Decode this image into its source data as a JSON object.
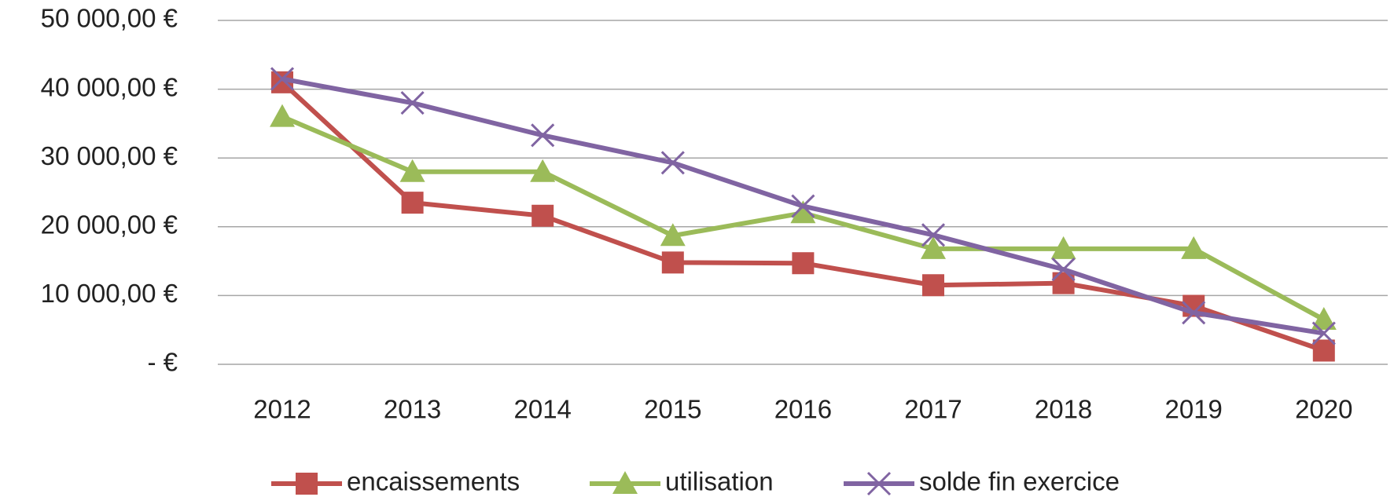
{
  "chart_data": {
    "type": "line",
    "categories": [
      "2012",
      "2013",
      "2014",
      "2015",
      "2016",
      "2017",
      "2018",
      "2019",
      "2020"
    ],
    "series": [
      {
        "name": "encaissements",
        "color": "#c0504d",
        "marker": "square",
        "values": [
          41000,
          23500,
          21600,
          14800,
          14700,
          11500,
          11800,
          8500,
          2000
        ]
      },
      {
        "name": "utilisation",
        "color": "#9bbb59",
        "marker": "triangle",
        "values": [
          36000,
          28000,
          28000,
          18700,
          22000,
          16800,
          16800,
          16800,
          6500
        ]
      },
      {
        "name": "solde fin exercice",
        "color": "#8064a2",
        "marker": "x",
        "values": [
          41500,
          38000,
          33300,
          29300,
          23000,
          18800,
          13800,
          7500,
          4500
        ]
      }
    ],
    "ylim": [
      0,
      50000
    ],
    "yticks": [
      {
        "value": 0,
        "label": "-   €"
      },
      {
        "value": 10000,
        "label": "10 000,00 €"
      },
      {
        "value": 20000,
        "label": "20 000,00 €"
      },
      {
        "value": 30000,
        "label": "30 000,00 €"
      },
      {
        "value": 40000,
        "label": "40 000,00 €"
      },
      {
        "value": 50000,
        "label": "50 000,00 €"
      }
    ],
    "grid": true,
    "legend": "bottom"
  }
}
